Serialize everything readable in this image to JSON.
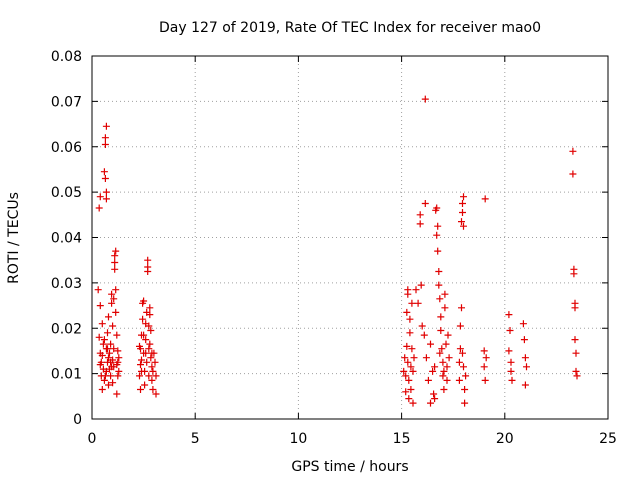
{
  "chart_data": {
    "type": "scatter",
    "title": "Day 127 of 2019, Rate Of TEC Index for receiver mao0",
    "xlabel": "GPS time / hours",
    "ylabel": "ROTI / TECUs",
    "xlim": [
      0,
      25
    ],
    "ylim": [
      0,
      0.08
    ],
    "x_ticks": [
      0,
      5,
      10,
      15,
      20,
      25
    ],
    "x_tick_labels": [
      "0",
      "5",
      "10",
      "15",
      "20",
      "25"
    ],
    "y_ticks": [
      0,
      0.01,
      0.02,
      0.03,
      0.04,
      0.05,
      0.06,
      0.07,
      0.08
    ],
    "y_tick_labels": [
      "0",
      "0.01",
      "0.02",
      "0.03",
      "0.04",
      "0.05",
      "0.06",
      "0.07",
      "0.08"
    ],
    "grid": true,
    "marker": "+",
    "color": "#e00000",
    "points": [
      [
        0.3,
        0.0285
      ],
      [
        0.35,
        0.0465
      ],
      [
        0.4,
        0.049
      ],
      [
        0.4,
        0.025
      ],
      [
        0.35,
        0.018
      ],
      [
        0.4,
        0.012
      ],
      [
        0.45,
        0.0095
      ],
      [
        0.5,
        0.0065
      ],
      [
        0.5,
        0.014
      ],
      [
        0.5,
        0.021
      ],
      [
        0.55,
        0.011
      ],
      [
        0.6,
        0.0175
      ],
      [
        0.6,
        0.0085
      ],
      [
        0.6,
        0.0545
      ],
      [
        0.65,
        0.053
      ],
      [
        0.65,
        0.0605
      ],
      [
        0.65,
        0.062
      ],
      [
        0.7,
        0.0645
      ],
      [
        0.7,
        0.0485
      ],
      [
        0.7,
        0.05
      ],
      [
        0.7,
        0.0155
      ],
      [
        0.7,
        0.0105
      ],
      [
        0.75,
        0.0125
      ],
      [
        0.75,
        0.019
      ],
      [
        0.8,
        0.0075
      ],
      [
        0.8,
        0.0135
      ],
      [
        0.8,
        0.0225
      ],
      [
        0.85,
        0.011
      ],
      [
        0.9,
        0.0165
      ],
      [
        0.9,
        0.0095
      ],
      [
        0.95,
        0.0255
      ],
      [
        0.95,
        0.0275
      ],
      [
        1.0,
        0.0205
      ],
      [
        1.0,
        0.013
      ],
      [
        1.0,
        0.008
      ],
      [
        1.05,
        0.0265
      ],
      [
        1.05,
        0.0155
      ],
      [
        1.1,
        0.033
      ],
      [
        1.1,
        0.0345
      ],
      [
        1.1,
        0.036
      ],
      [
        1.15,
        0.037
      ],
      [
        1.15,
        0.0285
      ],
      [
        1.15,
        0.0235
      ],
      [
        1.2,
        0.0185
      ],
      [
        1.2,
        0.012
      ],
      [
        1.2,
        0.0055
      ],
      [
        1.25,
        0.0095
      ],
      [
        1.25,
        0.015
      ],
      [
        1.3,
        0.0135
      ],
      [
        1.3,
        0.0105
      ],
      [
        0.4,
        0.0145
      ],
      [
        0.45,
        0.0125
      ],
      [
        0.55,
        0.0165
      ],
      [
        0.75,
        0.0155
      ],
      [
        0.85,
        0.0145
      ],
      [
        0.95,
        0.0115
      ],
      [
        1.05,
        0.0115
      ],
      [
        1.25,
        0.0125
      ],
      [
        0.65,
        0.0095
      ],
      [
        0.9,
        0.0125
      ],
      [
        2.3,
        0.016
      ],
      [
        2.3,
        0.0095
      ],
      [
        2.35,
        0.012
      ],
      [
        2.35,
        0.0065
      ],
      [
        2.4,
        0.0185
      ],
      [
        2.4,
        0.013
      ],
      [
        2.45,
        0.022
      ],
      [
        2.45,
        0.0255
      ],
      [
        2.5,
        0.026
      ],
      [
        2.5,
        0.0145
      ],
      [
        2.55,
        0.0105
      ],
      [
        2.55,
        0.0075
      ],
      [
        2.6,
        0.021
      ],
      [
        2.6,
        0.0175
      ],
      [
        2.65,
        0.0235
      ],
      [
        2.65,
        0.0125
      ],
      [
        2.7,
        0.0335
      ],
      [
        2.7,
        0.035
      ],
      [
        2.7,
        0.0325
      ],
      [
        2.75,
        0.0205
      ],
      [
        2.75,
        0.0155
      ],
      [
        2.75,
        0.0095
      ],
      [
        2.8,
        0.023
      ],
      [
        2.8,
        0.0245
      ],
      [
        2.85,
        0.0195
      ],
      [
        2.85,
        0.0135
      ],
      [
        2.9,
        0.0115
      ],
      [
        2.9,
        0.0085
      ],
      [
        2.95,
        0.0065
      ],
      [
        2.95,
        0.0105
      ],
      [
        3.0,
        0.0145
      ],
      [
        3.05,
        0.0125
      ],
      [
        3.1,
        0.0055
      ],
      [
        3.1,
        0.0095
      ],
      [
        2.5,
        0.0185
      ],
      [
        2.6,
        0.0145
      ],
      [
        2.8,
        0.0165
      ],
      [
        2.4,
        0.0105
      ],
      [
        2.9,
        0.0145
      ],
      [
        2.35,
        0.0155
      ],
      [
        15.1,
        0.0105
      ],
      [
        15.15,
        0.0135
      ],
      [
        15.2,
        0.006
      ],
      [
        15.2,
        0.0095
      ],
      [
        15.25,
        0.016
      ],
      [
        15.25,
        0.0235
      ],
      [
        15.3,
        0.0275
      ],
      [
        15.3,
        0.0285
      ],
      [
        15.3,
        0.0125
      ],
      [
        15.35,
        0.0045
      ],
      [
        15.35,
        0.0085
      ],
      [
        15.4,
        0.019
      ],
      [
        15.4,
        0.022
      ],
      [
        15.45,
        0.0115
      ],
      [
        15.45,
        0.0065
      ],
      [
        15.5,
        0.0155
      ],
      [
        15.5,
        0.0255
      ],
      [
        15.55,
        0.0105
      ],
      [
        15.55,
        0.0035
      ],
      [
        15.6,
        0.0135
      ],
      [
        15.7,
        0.0285
      ],
      [
        15.8,
        0.0255
      ],
      [
        15.9,
        0.045
      ],
      [
        15.9,
        0.043
      ],
      [
        15.95,
        0.0295
      ],
      [
        16.0,
        0.0205
      ],
      [
        16.1,
        0.0185
      ],
      [
        16.15,
        0.0475
      ],
      [
        16.15,
        0.0705
      ],
      [
        16.2,
        0.0135
      ],
      [
        16.3,
        0.0085
      ],
      [
        16.4,
        0.0165
      ],
      [
        16.5,
        0.0105
      ],
      [
        16.55,
        0.0055
      ],
      [
        16.6,
        0.0115
      ],
      [
        16.65,
        0.046
      ],
      [
        16.7,
        0.0465
      ],
      [
        16.7,
        0.0405
      ],
      [
        16.75,
        0.0425
      ],
      [
        16.75,
        0.037
      ],
      [
        16.8,
        0.0325
      ],
      [
        16.8,
        0.0295
      ],
      [
        16.85,
        0.0265
      ],
      [
        16.9,
        0.0225
      ],
      [
        16.9,
        0.0195
      ],
      [
        16.95,
        0.0155
      ],
      [
        17.0,
        0.0125
      ],
      [
        17.0,
        0.0095
      ],
      [
        17.05,
        0.0065
      ],
      [
        17.1,
        0.0275
      ],
      [
        17.1,
        0.0245
      ],
      [
        17.15,
        0.0165
      ],
      [
        17.2,
        0.0115
      ],
      [
        17.2,
        0.0085
      ],
      [
        17.25,
        0.0185
      ],
      [
        17.3,
        0.0135
      ],
      [
        16.4,
        0.0035
      ],
      [
        16.6,
        0.0045
      ],
      [
        16.85,
        0.0145
      ],
      [
        17.05,
        0.0105
      ],
      [
        17.8,
        0.0085
      ],
      [
        17.8,
        0.0125
      ],
      [
        17.85,
        0.0155
      ],
      [
        17.85,
        0.0205
      ],
      [
        17.9,
        0.0245
      ],
      [
        17.9,
        0.0435
      ],
      [
        17.95,
        0.0455
      ],
      [
        17.95,
        0.0475
      ],
      [
        18.0,
        0.049
      ],
      [
        18.0,
        0.0425
      ],
      [
        18.0,
        0.0115
      ],
      [
        18.05,
        0.0065
      ],
      [
        18.05,
        0.0035
      ],
      [
        18.1,
        0.0095
      ],
      [
        17.95,
        0.0145
      ],
      [
        19.0,
        0.015
      ],
      [
        19.0,
        0.0115
      ],
      [
        19.05,
        0.0085
      ],
      [
        19.05,
        0.0485
      ],
      [
        19.1,
        0.0135
      ],
      [
        20.2,
        0.023
      ],
      [
        20.2,
        0.015
      ],
      [
        20.25,
        0.0195
      ],
      [
        20.3,
        0.0125
      ],
      [
        20.3,
        0.0105
      ],
      [
        20.35,
        0.0085
      ],
      [
        20.9,
        0.021
      ],
      [
        20.95,
        0.0175
      ],
      [
        21.0,
        0.0135
      ],
      [
        21.0,
        0.0075
      ],
      [
        21.05,
        0.0115
      ],
      [
        23.3,
        0.059
      ],
      [
        23.3,
        0.054
      ],
      [
        23.35,
        0.033
      ],
      [
        23.35,
        0.032
      ],
      [
        23.4,
        0.0255
      ],
      [
        23.4,
        0.0245
      ],
      [
        23.4,
        0.0175
      ],
      [
        23.45,
        0.0145
      ],
      [
        23.45,
        0.0105
      ],
      [
        23.5,
        0.0095
      ]
    ]
  }
}
